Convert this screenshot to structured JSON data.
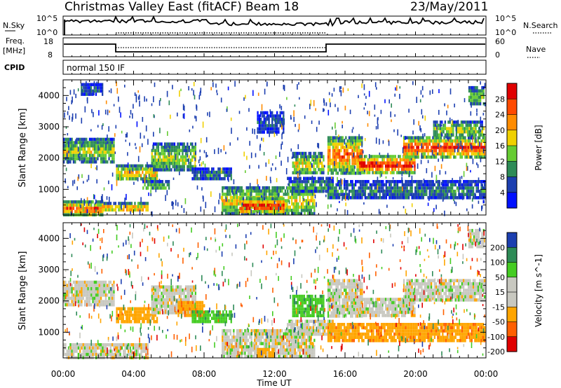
{
  "header": {
    "title": "Christmas Valley East (fitACF)",
    "beam": "Beam 18",
    "date": "23/May/2011"
  },
  "summary": {
    "nsky_label": "N.Sky",
    "nsearch_label": "N.Search",
    "freq_label": "Freq.",
    "freq_unit": "[MHz]",
    "nave_label": "Nave",
    "cpid_label": "CPID",
    "cpid_text": "normal 150 IF",
    "left_ticks_noise": [
      "10^5",
      "10^0"
    ],
    "right_ticks_noise": [
      "10^5",
      "10^0"
    ],
    "left_ticks_freq": [
      "18",
      "8"
    ],
    "right_ticks_nave": [
      "60",
      "0"
    ]
  },
  "chart_data": [
    {
      "type": "heatmap",
      "parameter": "Power",
      "ylabel": "Slant Range [km]",
      "xlabel": "",
      "colorbar_label": "Power [dB]",
      "colorbar_ticks": [
        "28",
        "24",
        "20",
        "16",
        "12",
        "8",
        "4"
      ],
      "colorbar_colors": [
        "#e00000",
        "#ff4a00",
        "#ff8c00",
        "#f0d000",
        "#66cc33",
        "#2e8b57",
        "#1c3fb0",
        "#0010ff"
      ],
      "yticks": [
        "4000",
        "3000",
        "2000",
        "1000"
      ],
      "ylim": [
        180,
        4500
      ],
      "xlim_hours": [
        0,
        24
      ],
      "regions": [
        {
          "t": [
            0.0,
            2.9
          ],
          "r": [
            1850,
            2650
          ],
          "level": 14
        },
        {
          "t": [
            0.0,
            2.2
          ],
          "r": [
            200,
            650
          ],
          "level": 22
        },
        {
          "t": [
            2.2,
            4.8
          ],
          "r": [
            300,
            600
          ],
          "level": 20
        },
        {
          "t": [
            3.0,
            5.3
          ],
          "r": [
            1300,
            1800
          ],
          "level": 18
        },
        {
          "t": [
            5.0,
            7.5
          ],
          "r": [
            1600,
            2500
          ],
          "level": 14
        },
        {
          "t": [
            4.5,
            6.0
          ],
          "r": [
            1000,
            1300
          ],
          "level": 12
        },
        {
          "t": [
            7.3,
            9.5
          ],
          "r": [
            1300,
            1700
          ],
          "level": 8
        },
        {
          "t": [
            9.0,
            14.3
          ],
          "r": [
            200,
            1100
          ],
          "level": 16
        },
        {
          "t": [
            10.0,
            12.5
          ],
          "r": [
            250,
            750
          ],
          "level": 26
        },
        {
          "t": [
            12.7,
            15.3
          ],
          "r": [
            900,
            1400
          ],
          "level": 10
        },
        {
          "t": [
            13.0,
            14.8
          ],
          "r": [
            1500,
            2200
          ],
          "level": 16
        },
        {
          "t": [
            15.0,
            17.0
          ],
          "r": [
            1550,
            2700
          ],
          "level": 22
        },
        {
          "t": [
            16.8,
            20.0
          ],
          "r": [
            1550,
            2100
          ],
          "level": 26
        },
        {
          "t": [
            19.3,
            23.9
          ],
          "r": [
            2050,
            2700
          ],
          "level": 24
        },
        {
          "t": [
            11.0,
            12.5
          ],
          "r": [
            2800,
            3500
          ],
          "level": 6
        },
        {
          "t": [
            15.0,
            23.9
          ],
          "r": [
            700,
            1300
          ],
          "level": 8
        },
        {
          "t": [
            21.0,
            23.9
          ],
          "r": [
            2700,
            3200
          ],
          "level": 14
        },
        {
          "t": [
            23.0,
            23.9
          ],
          "r": [
            3700,
            4300
          ],
          "level": 12
        },
        {
          "t": [
            1.0,
            2.2
          ],
          "r": [
            4000,
            4400
          ],
          "level": 6
        }
      ]
    },
    {
      "type": "heatmap",
      "parameter": "Velocity",
      "ylabel": "Slant Range [km]",
      "xlabel": "Time UT",
      "colorbar_label": "Velocity [m s^-1]",
      "colorbar_ticks": [
        "200",
        "100",
        "50",
        "15",
        "-15",
        "-50",
        "-100",
        "-200"
      ],
      "colorbar_colors": [
        "#1c3fb0",
        "#2e8b57",
        "#44cc22",
        "#c8c8c0",
        "#c8c8c0",
        "#ffa500",
        "#ff6000",
        "#e00000"
      ],
      "yticks": [
        "4000",
        "3000",
        "2000",
        "1000"
      ],
      "xticks": [
        "00:00",
        "04:00",
        "08:00",
        "12:00",
        "16:00",
        "20:00",
        "00:00"
      ],
      "ylim": [
        180,
        4500
      ],
      "xlim_hours": [
        0,
        24
      ],
      "regions": [
        {
          "t": [
            0.0,
            2.9
          ],
          "r": [
            1850,
            2650
          ],
          "v": 0
        },
        {
          "t": [
            0.0,
            4.8
          ],
          "r": [
            200,
            650
          ],
          "v": 0
        },
        {
          "t": [
            3.0,
            5.3
          ],
          "r": [
            1300,
            1800
          ],
          "v": -40
        },
        {
          "t": [
            5.0,
            7.5
          ],
          "r": [
            1600,
            2500
          ],
          "v": 0
        },
        {
          "t": [
            6.5,
            8.0
          ],
          "r": [
            1500,
            2000
          ],
          "v": -60
        },
        {
          "t": [
            7.3,
            9.5
          ],
          "r": [
            1300,
            1700
          ],
          "v": 60
        },
        {
          "t": [
            9.0,
            14.3
          ],
          "r": [
            200,
            1100
          ],
          "v": 0
        },
        {
          "t": [
            11.0,
            12.0
          ],
          "r": [
            250,
            500
          ],
          "v": -40
        },
        {
          "t": [
            12.7,
            15.3
          ],
          "r": [
            900,
            1400
          ],
          "v": 0
        },
        {
          "t": [
            13.0,
            14.8
          ],
          "r": [
            1500,
            2200
          ],
          "v": 60
        },
        {
          "t": [
            15.0,
            17.0
          ],
          "r": [
            1550,
            2700
          ],
          "v": 0
        },
        {
          "t": [
            16.8,
            20.0
          ],
          "r": [
            1550,
            2100
          ],
          "v": 0
        },
        {
          "t": [
            19.3,
            23.9
          ],
          "r": [
            2050,
            2700
          ],
          "v": 0
        },
        {
          "t": [
            23.0,
            23.9
          ],
          "r": [
            3700,
            4300
          ],
          "v": 0
        },
        {
          "t": [
            15.0,
            23.9
          ],
          "r": [
            700,
            1300
          ],
          "v": -60
        }
      ]
    }
  ]
}
